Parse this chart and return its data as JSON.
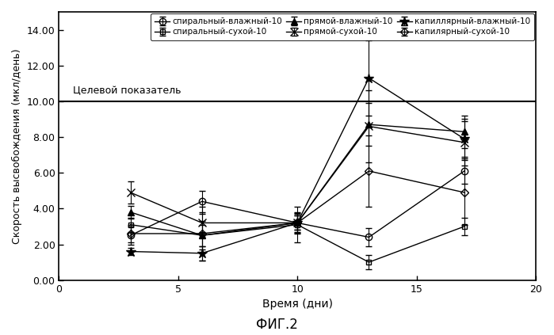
{
  "title": "ФИГ.2",
  "xlabel": "Время (дни)",
  "ylabel": "Скорость высвобождения (мкл/день)",
  "target_line_y": 10.0,
  "target_label": "Целевой показатель",
  "xlim": [
    0,
    20
  ],
  "ylim": [
    0,
    15
  ],
  "yticks": [
    0.0,
    2.0,
    4.0,
    6.0,
    8.0,
    10.0,
    12.0,
    14.0
  ],
  "xticks": [
    0,
    5,
    10,
    15,
    20
  ],
  "series": [
    {
      "label": "спиральный-влажный-10",
      "marker": "o",
      "marker_size": 6,
      "linestyle": "-",
      "color": "#000000",
      "fillstyle": "none",
      "x": [
        3,
        6,
        10,
        13,
        17
      ],
      "y": [
        2.5,
        4.4,
        3.2,
        2.4,
        6.1
      ],
      "yerr": [
        0.5,
        0.6,
        0.4,
        0.5,
        0.7
      ]
    },
    {
      "label": "спиральный-сухой-10",
      "marker": "s",
      "marker_size": 5,
      "linestyle": "-",
      "color": "#000000",
      "fillstyle": "none",
      "x": [
        3,
        6,
        10,
        13,
        17
      ],
      "y": [
        3.1,
        2.5,
        3.1,
        1.0,
        3.0
      ],
      "yerr": [
        0.4,
        0.8,
        1.0,
        0.4,
        0.5
      ]
    },
    {
      "label": "прямой-влажный-10",
      "marker": "^",
      "marker_size": 6,
      "linestyle": "-",
      "color": "#000000",
      "fillstyle": "full",
      "x": [
        3,
        6,
        10,
        13,
        17
      ],
      "y": [
        3.8,
        2.5,
        3.2,
        8.7,
        8.3
      ],
      "yerr": [
        0.35,
        0.6,
        0.55,
        1.2,
        0.9
      ]
    },
    {
      "label": "прямой-сухой-10",
      "marker": "x",
      "marker_size": 7,
      "linestyle": "-",
      "color": "#000000",
      "fillstyle": "full",
      "x": [
        3,
        6,
        10,
        13,
        17
      ],
      "y": [
        4.9,
        3.2,
        3.2,
        8.6,
        7.7
      ],
      "yerr": [
        0.6,
        0.5,
        0.4,
        2.0,
        1.3
      ]
    },
    {
      "label": "капиллярный-влажный-10",
      "marker": "*",
      "marker_size": 9,
      "linestyle": "-",
      "color": "#000000",
      "fillstyle": "full",
      "x": [
        3,
        6,
        10,
        13,
        17
      ],
      "y": [
        1.6,
        1.5,
        3.2,
        11.3,
        7.9
      ],
      "yerr": [
        0.2,
        0.4,
        0.5,
        2.1,
        1.0
      ]
    },
    {
      "label": "капилярный-сухой-10",
      "marker": "D",
      "marker_size": 5,
      "linestyle": "-",
      "color": "#000000",
      "fillstyle": "none",
      "x": [
        3,
        6,
        10,
        13,
        17
      ],
      "y": [
        2.6,
        2.6,
        3.2,
        6.1,
        4.9
      ],
      "yerr": [
        0.5,
        1.5,
        0.6,
        2.0,
        1.8
      ]
    }
  ],
  "background_color": "#ffffff",
  "legend_ncol": 3,
  "legend_fontsize": 7.5
}
